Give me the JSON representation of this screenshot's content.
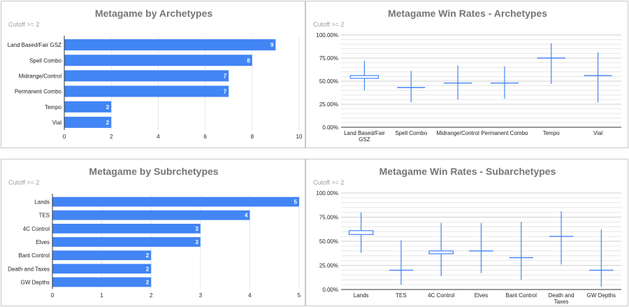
{
  "colors": {
    "bar": "#4285f4",
    "grid": "#e6e6e6",
    "axis": "#333333"
  },
  "chart_data": [
    {
      "type": "bar",
      "orientation": "horizontal",
      "title": "Metagame by Archetypes",
      "subtitle": "Cutoff >= 2",
      "categories": [
        "Land Based/Fair GSZ",
        "Spell Combo",
        "Midrange/Control",
        "Permanent Combo",
        "Tempo",
        "Vial"
      ],
      "values": [
        9,
        8,
        7,
        7,
        2,
        2
      ],
      "xlim": [
        0,
        10
      ],
      "xticks": [
        "0",
        "2",
        "4",
        "6",
        "8",
        "10"
      ],
      "data_labels": true
    },
    {
      "type": "candlestick",
      "title": "Metagame Win Rates - Archetypes",
      "subtitle": "Cutoff >= 2",
      "categories": [
        "Land Based/Fair GSZ",
        "Spell Combo",
        "Midrange/Control",
        "Permanent Combo",
        "Tempo",
        "Vial"
      ],
      "low": [
        40,
        27,
        30,
        31,
        47,
        27
      ],
      "open": [
        53,
        43,
        48,
        48,
        75,
        56
      ],
      "close": [
        56,
        43,
        48,
        48,
        75,
        56
      ],
      "high": [
        72,
        61,
        67,
        66,
        91,
        81
      ],
      "ylim": [
        0,
        100
      ],
      "yticks": [
        "0.00%",
        "25.00%",
        "50.00%",
        "75.00%",
        "100.00%"
      ]
    },
    {
      "type": "bar",
      "orientation": "horizontal",
      "title": "Metagame by Subrchetypes",
      "subtitle": "Cutoff >= 2",
      "categories": [
        "Lands",
        "TES",
        "4C Control",
        "Elves",
        "Bant Control",
        "Death and Taxes",
        "GW Depths"
      ],
      "values": [
        5,
        4,
        3,
        3,
        2,
        2,
        2
      ],
      "xlim": [
        0,
        5
      ],
      "xticks": [
        "0",
        "1",
        "2",
        "3",
        "4",
        "5"
      ],
      "data_labels": true
    },
    {
      "type": "candlestick",
      "title": "Metagame Win Rates - Subarchetypes",
      "subtitle": "Cutoff >= 2",
      "categories": [
        "Lands",
        "TES",
        "4C Control",
        "Elves",
        "Bant Control",
        "Death and Taxes",
        "GW Depths"
      ],
      "low": [
        38,
        5,
        14,
        17,
        10,
        26,
        3
      ],
      "open": [
        57,
        20,
        37,
        40,
        33,
        55,
        20
      ],
      "close": [
        61,
        20,
        40,
        40,
        33,
        55,
        20
      ],
      "high": [
        80,
        51,
        69,
        69,
        70,
        81,
        62
      ],
      "ylim": [
        0,
        100
      ],
      "yticks": [
        "0.00%",
        "25.00%",
        "50.00%",
        "75.00%",
        "100.00%"
      ]
    }
  ]
}
